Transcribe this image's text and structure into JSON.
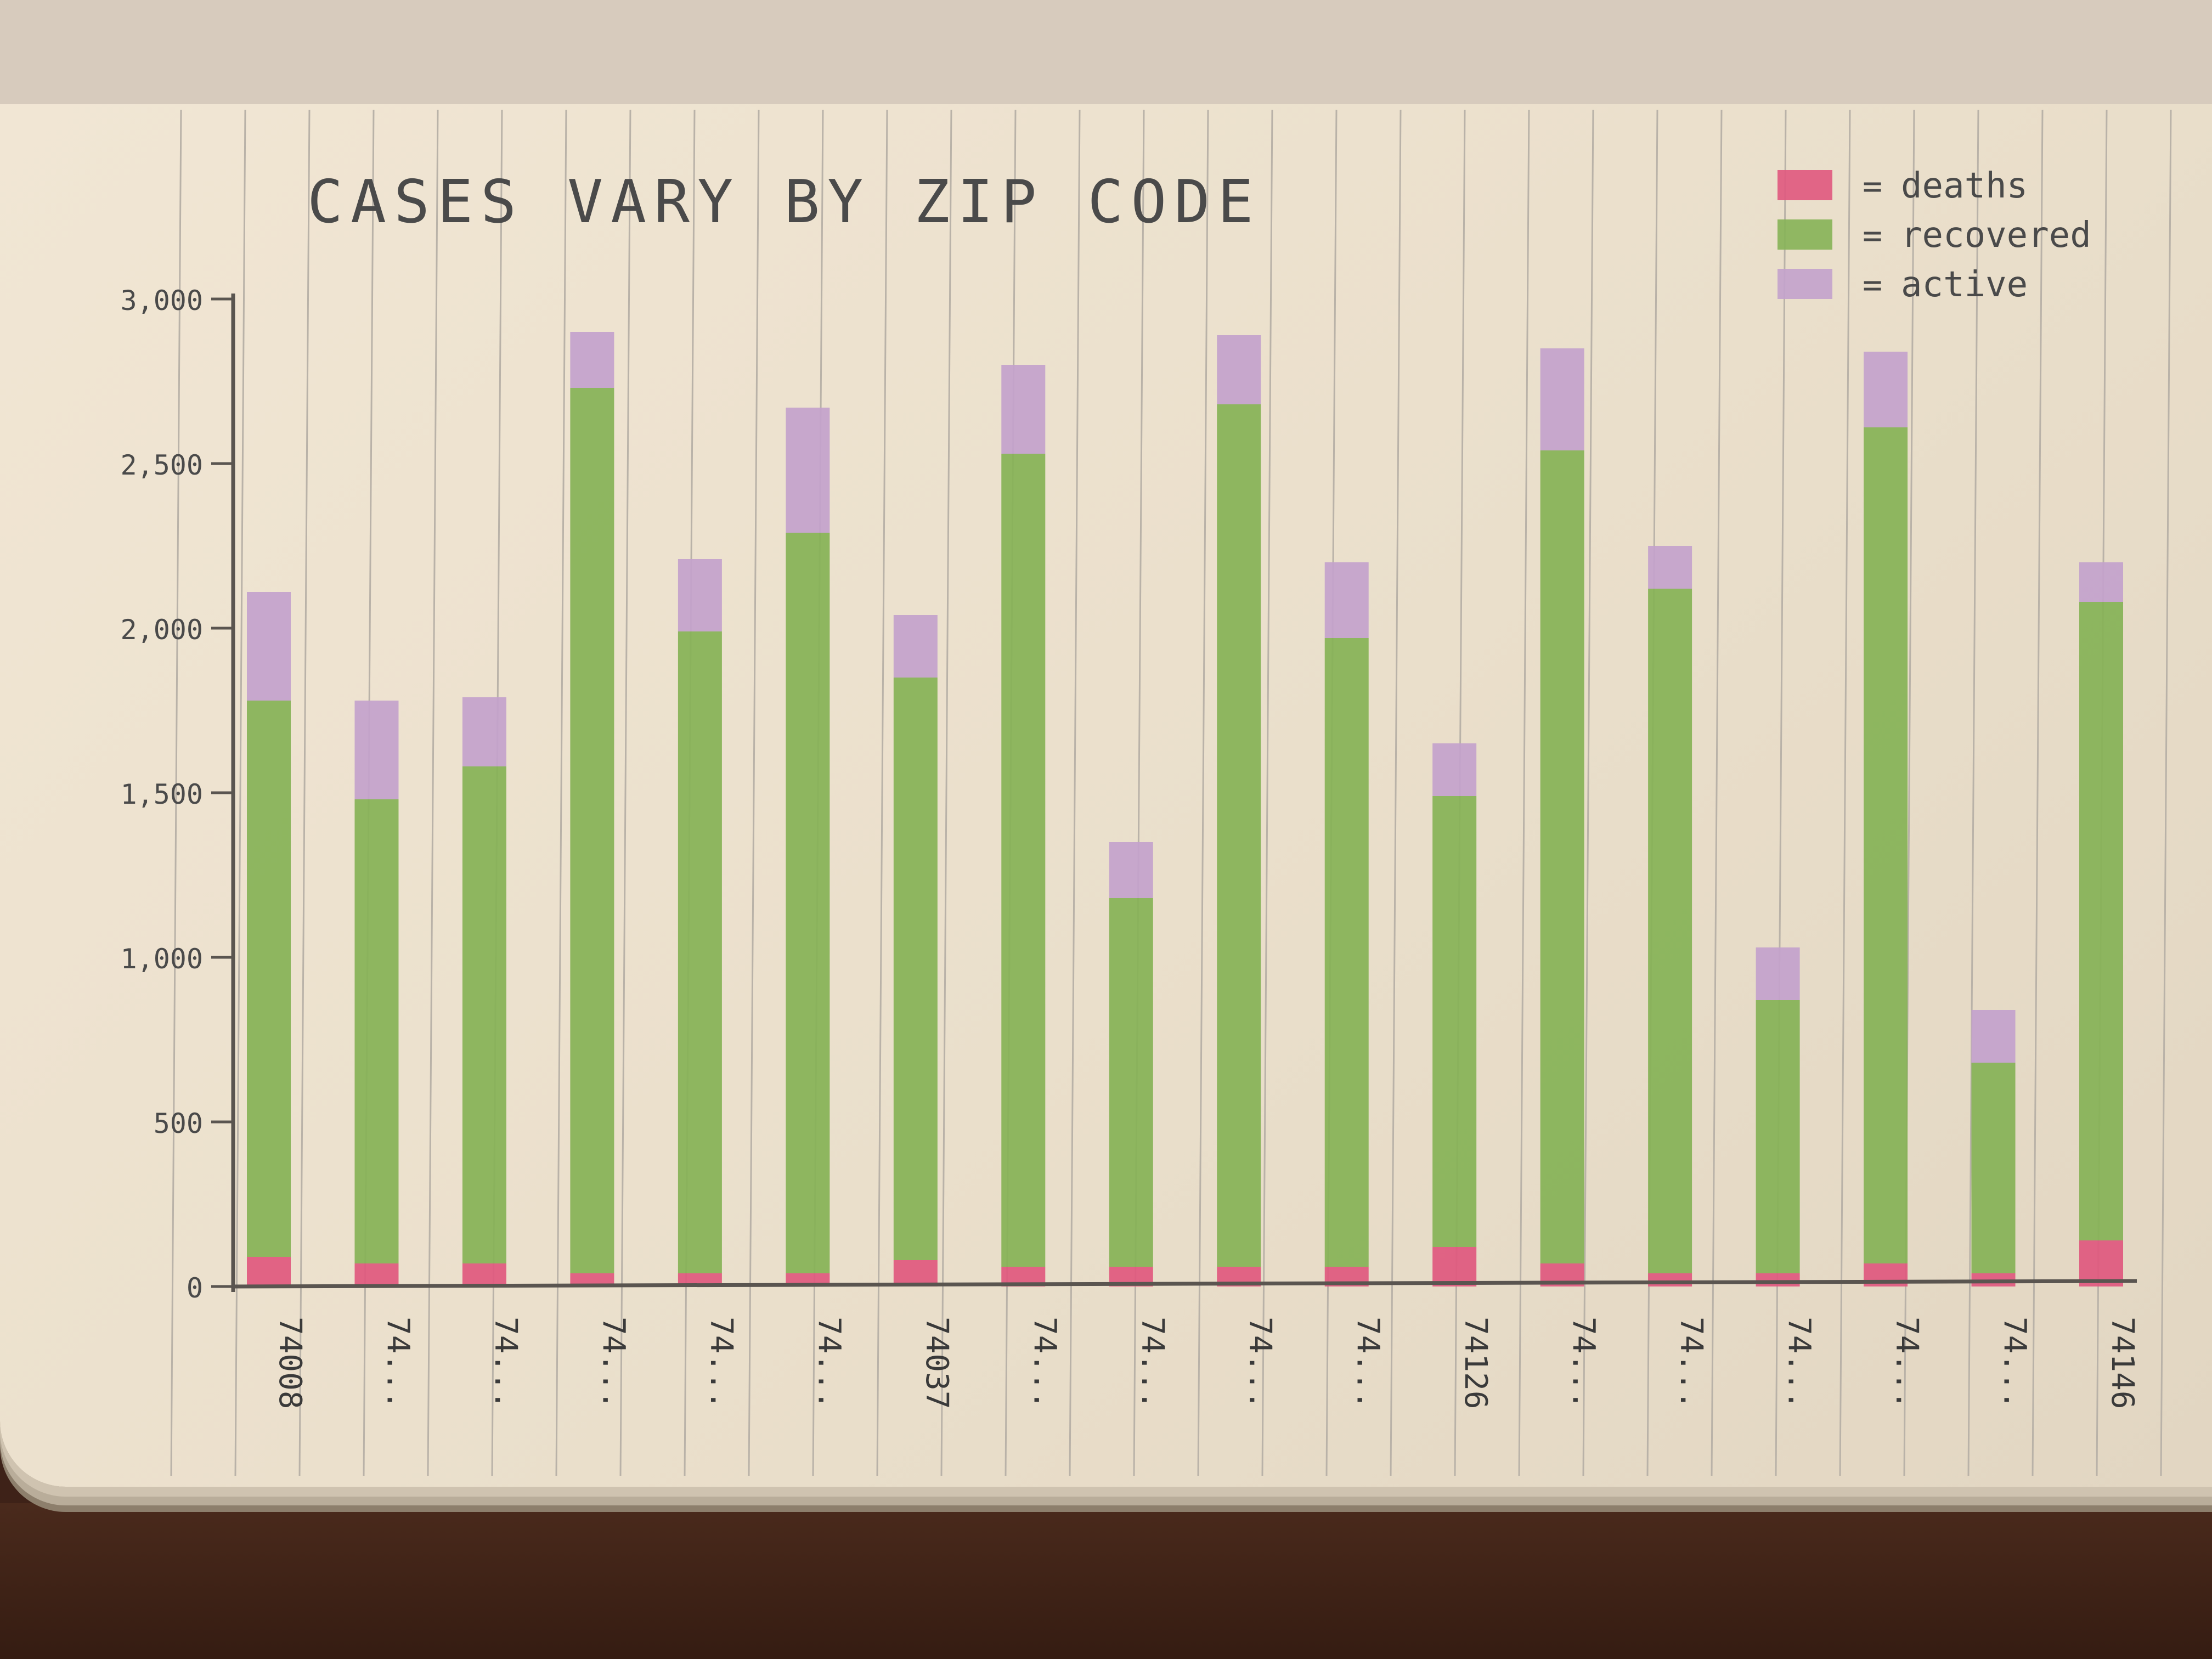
{
  "chart_data": {
    "type": "bar",
    "stacked": true,
    "title": "CASES VARY BY ZIP CODE",
    "categories": [
      "74008",
      "74...",
      "74...",
      "74...",
      "74...",
      "74...",
      "74037",
      "74...",
      "74...",
      "74...",
      "74...",
      "74126",
      "74...",
      "74...",
      "74...",
      "74...",
      "74...",
      "74146"
    ],
    "series": [
      {
        "name": "deaths",
        "color": "#e0587e",
        "values": [
          90,
          70,
          70,
          40,
          40,
          40,
          80,
          60,
          60,
          60,
          60,
          120,
          70,
          40,
          40,
          70,
          40,
          140
        ]
      },
      {
        "name": "recovered",
        "color": "#86b256",
        "values": [
          1690,
          1410,
          1510,
          2690,
          1950,
          2250,
          1770,
          2470,
          1120,
          2620,
          1910,
          1370,
          2470,
          2080,
          830,
          2540,
          640,
          1940
        ]
      },
      {
        "name": "active",
        "color": "#c3a2cc",
        "values": [
          330,
          300,
          210,
          170,
          220,
          380,
          190,
          270,
          170,
          210,
          230,
          160,
          310,
          130,
          160,
          230,
          160,
          120
        ]
      }
    ],
    "yticks": [
      "0",
      "500",
      "1,000",
      "1,500",
      "2,000",
      "2,500",
      "3,000"
    ],
    "ylim": [
      0,
      3000
    ],
    "xlabel": "",
    "ylabel": "",
    "legend": "top-right",
    "grid": false
  }
}
